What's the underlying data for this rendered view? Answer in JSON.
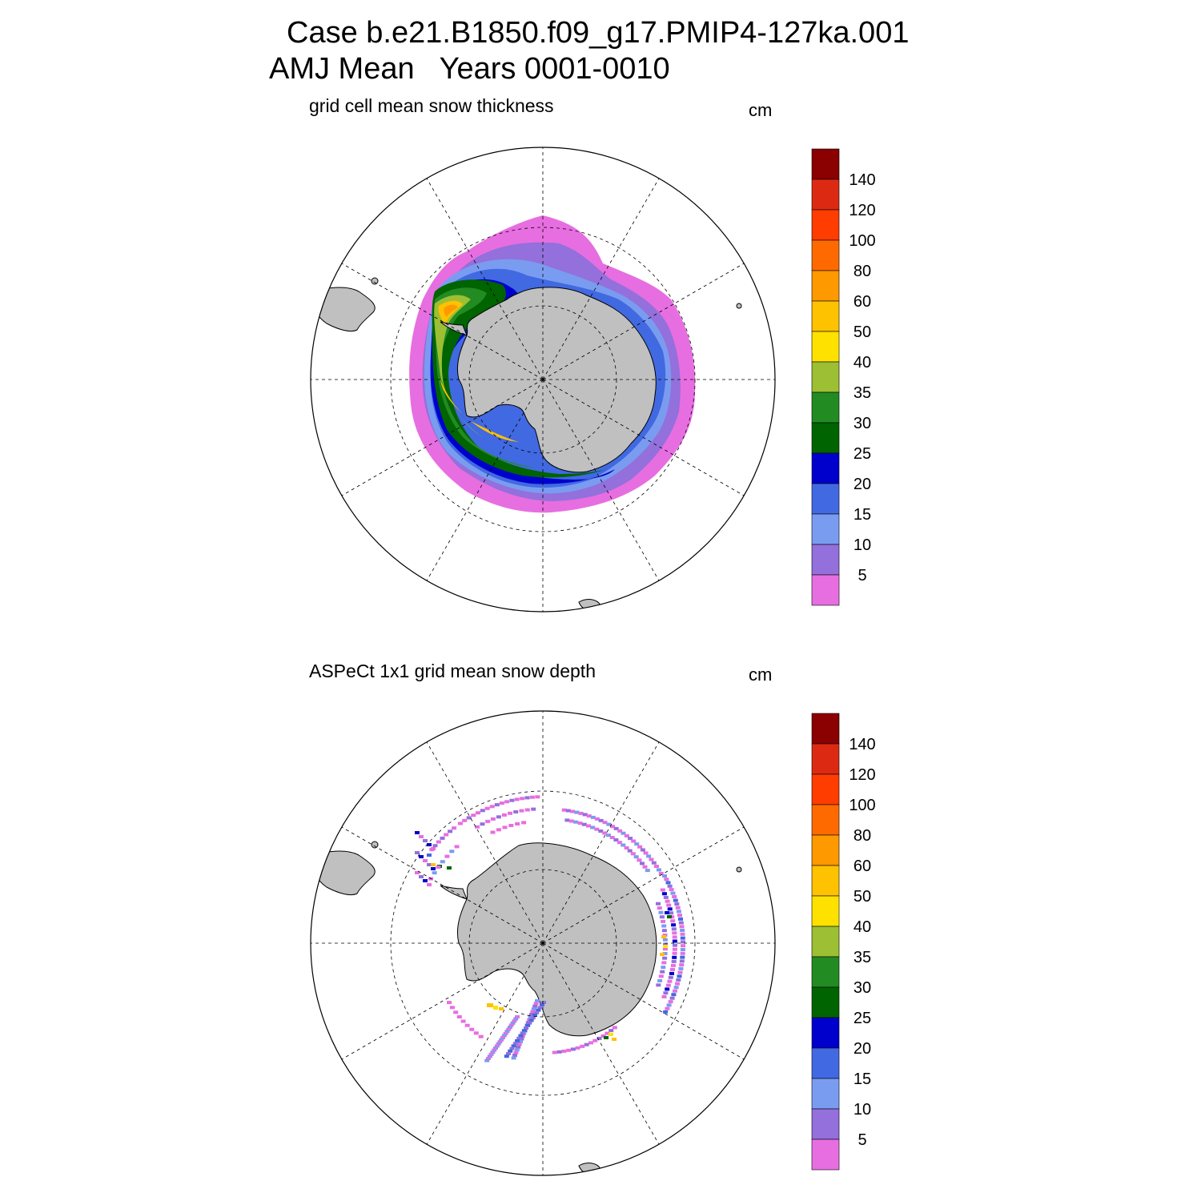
{
  "header": {
    "case_line": "Case b.e21.B1850.f09_g17.PMIP4-127ka.001",
    "period_line": "AMJ Mean   Years 0001-0010"
  },
  "panels": [
    {
      "subtitle": "grid cell mean snow thickness",
      "units": "cm",
      "projection": "south-polar-stereographic",
      "field_type": "model-continuous"
    },
    {
      "subtitle": "ASPeCt 1x1 grid mean snow depth",
      "units": "cm",
      "projection": "south-polar-stereographic",
      "field_type": "observation-sparse"
    }
  ],
  "colorbar": {
    "labels": [
      "140",
      "120",
      "100",
      "80",
      "60",
      "50",
      "40",
      "35",
      "30",
      "25",
      "20",
      "15",
      "10",
      "5"
    ],
    "colors": [
      "#8b0000",
      "#dc2a12",
      "#ff3d00",
      "#ff6a00",
      "#ff9900",
      "#ffc200",
      "#ffe100",
      "#9cbf34",
      "#228b22",
      "#006400",
      "#0000cd",
      "#4169e1",
      "#7a9cf0",
      "#9370db",
      "#e76ee0"
    ]
  },
  "map_colors": {
    "land": "#c0c0c0",
    "land_outline": "#000000",
    "grid": "#000000"
  }
}
